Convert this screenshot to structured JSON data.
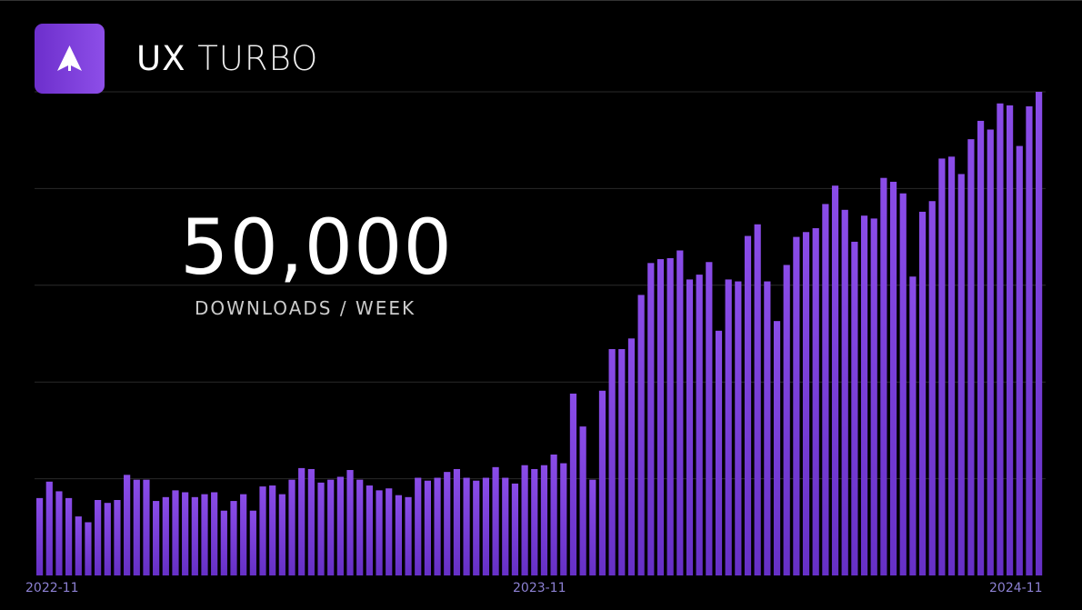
{
  "header": {
    "brand_bold": "UX",
    "brand_light": "TURBO",
    "logo_icon": "arrow-up-icon"
  },
  "headline": {
    "value": "50,000",
    "caption": "DOWNLOADS / WEEK"
  },
  "colors": {
    "bar_top": "#8a4ce8",
    "bar_bottom": "#6630c6",
    "label": "#8c80d2",
    "grid": "#2a2a2a"
  },
  "chart_data": {
    "type": "bar",
    "title": "",
    "xlabel": "",
    "ylabel": "",
    "ylim": [
      0,
      50000
    ],
    "grid": true,
    "x_tick_labels": [
      "2022-11",
      "2023-11",
      "2024-11"
    ],
    "values": [
      8000,
      9700,
      8700,
      8000,
      6100,
      5500,
      7800,
      7500,
      7800,
      10400,
      9900,
      9900,
      7700,
      8100,
      8800,
      8600,
      8100,
      8400,
      8600,
      6700,
      7700,
      8400,
      6700,
      9200,
      9300,
      8400,
      9900,
      11100,
      11000,
      9600,
      9900,
      10200,
      10900,
      9900,
      9300,
      8800,
      9000,
      8300,
      8100,
      10100,
      9800,
      10100,
      10700,
      11000,
      10100,
      9800,
      10100,
      11200,
      10100,
      9500,
      11400,
      11000,
      11400,
      12500,
      11600,
      18800,
      15400,
      9900,
      19100,
      23400,
      23400,
      24500,
      29000,
      32300,
      32700,
      32800,
      33600,
      30600,
      31100,
      32400,
      25300,
      30600,
      30400,
      35100,
      36300,
      30400,
      26300,
      32100,
      35000,
      35500,
      35900,
      38400,
      40300,
      37800,
      34500,
      37200,
      36900,
      41100,
      40700,
      39500,
      30900,
      37600,
      38700,
      43100,
      43300,
      41500,
      45100,
      47000,
      46100,
      48800,
      48600,
      44400,
      48500,
      50000
    ]
  }
}
